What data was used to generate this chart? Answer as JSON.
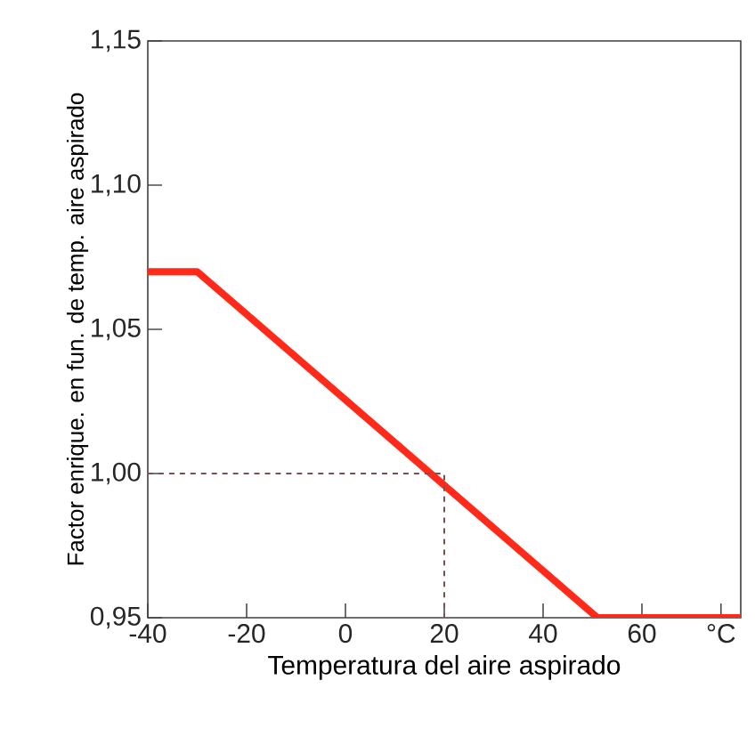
{
  "chart_data": {
    "type": "line",
    "xlabel": "Temperatura del aire aspirado",
    "ylabel": "Factor enrique. en fun. de temp. aire aspirado",
    "xlim": [
      -40,
      80
    ],
    "ylim": [
      0.95,
      1.15
    ],
    "xticks": [
      -40,
      -20,
      0,
      20,
      40,
      60,
      {
        "value": 76,
        "label": "°C"
      }
    ],
    "yticks": [
      {
        "value": 0.95,
        "label": "0,95"
      },
      {
        "value": 1.0,
        "label": "1,00"
      },
      {
        "value": 1.05,
        "label": "1,05"
      },
      {
        "value": 1.1,
        "label": "1,10"
      },
      {
        "value": 1.15,
        "label": "1,15"
      }
    ],
    "grid": false,
    "marker": "none",
    "series": [
      {
        "color": "#ff2a1a",
        "line_style": "solid",
        "x": [
          -40,
          -30,
          51,
          80
        ],
        "values": [
          1.07,
          1.07,
          0.95,
          0.95
        ]
      },
      {
        "color": "#7a5050",
        "line_style": "dashed",
        "x": [
          -40,
          20,
          20
        ],
        "values": [
          1.0,
          1.0,
          0.95
        ]
      }
    ]
  }
}
